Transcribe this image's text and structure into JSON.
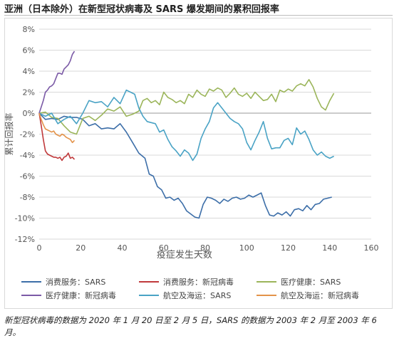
{
  "page": {
    "title": "亚洲（日本除外）在新型冠状病毒及 SARS 爆发期间的累积回报率",
    "note": "新型冠状病毒的数据为 2020 年 1 月 20 日至 2 月 5 日，SARS 的数据为 2003 年 2 月至 2003 年 6 月。"
  },
  "chart_data": {
    "type": "line",
    "xlabel": "疫症发生天数",
    "ylabel": "累计回报率",
    "xlim": [
      0,
      160
    ],
    "ylim": [
      -12,
      8
    ],
    "x_ticks": [
      0,
      20,
      40,
      60,
      80,
      100,
      120,
      140,
      160
    ],
    "y_ticks": [
      -12,
      -10,
      -8,
      -6,
      -4,
      -2,
      0,
      2,
      4,
      6,
      8
    ],
    "y_tick_labels": [
      "-12%",
      "-10%",
      "-8%",
      "-6%",
      "-4%",
      "-2%",
      "0%",
      "2%",
      "4%",
      "6%",
      "8%"
    ],
    "grid": "horizontal",
    "legend": "bottom",
    "series": [
      {
        "name": "消费服务：SARS",
        "color": "#3c6ea8",
        "points": [
          [
            0,
            0
          ],
          [
            3,
            -0.6
          ],
          [
            6,
            -0.5
          ],
          [
            9,
            -0.6
          ],
          [
            12,
            -0.3
          ],
          [
            15,
            -0.4
          ],
          [
            18,
            -0.4
          ],
          [
            21,
            -0.6
          ],
          [
            24,
            -1.2
          ],
          [
            27,
            -1.0
          ],
          [
            30,
            -1.5
          ],
          [
            33,
            -1.4
          ],
          [
            36,
            -1.5
          ],
          [
            39,
            -1.0
          ],
          [
            42,
            -1.8
          ],
          [
            45,
            -2.8
          ],
          [
            48,
            -3.8
          ],
          [
            51,
            -4.3
          ],
          [
            53,
            -5.8
          ],
          [
            55,
            -6.0
          ],
          [
            57,
            -7.0
          ],
          [
            59,
            -7.3
          ],
          [
            61,
            -8.1
          ],
          [
            63,
            -8.0
          ],
          [
            65,
            -8.3
          ],
          [
            67,
            -8.1
          ],
          [
            69,
            -8.6
          ],
          [
            71,
            -9.3
          ],
          [
            73,
            -9.6
          ],
          [
            75,
            -9.9
          ],
          [
            77,
            -10.0
          ],
          [
            79,
            -8.7
          ],
          [
            81,
            -8.0
          ],
          [
            83,
            -8.1
          ],
          [
            85,
            -8.3
          ],
          [
            87,
            -8.6
          ],
          [
            89,
            -8.2
          ],
          [
            91,
            -8.4
          ],
          [
            93,
            -8.1
          ],
          [
            95,
            -8.0
          ],
          [
            97,
            -8.2
          ],
          [
            99,
            -8.1
          ],
          [
            101,
            -7.8
          ],
          [
            103,
            -8.0
          ],
          [
            105,
            -7.8
          ],
          [
            107,
            -7.6
          ],
          [
            109,
            -8.8
          ],
          [
            111,
            -9.7
          ],
          [
            113,
            -9.8
          ],
          [
            115,
            -9.5
          ],
          [
            117,
            -9.7
          ],
          [
            119,
            -9.4
          ],
          [
            121,
            -9.8
          ],
          [
            123,
            -9.2
          ],
          [
            125,
            -9.1
          ],
          [
            127,
            -9.3
          ],
          [
            129,
            -8.8
          ],
          [
            131,
            -9.2
          ],
          [
            133,
            -8.7
          ],
          [
            135,
            -8.6
          ],
          [
            137,
            -8.2
          ],
          [
            139,
            -8.1
          ],
          [
            141,
            -8.0
          ]
        ]
      },
      {
        "name": "消费服务：新冠病毒",
        "color": "#c0393b",
        "points": [
          [
            0,
            0
          ],
          [
            1,
            -1.2
          ],
          [
            2,
            -2.5
          ],
          [
            3,
            -3.6
          ],
          [
            4,
            -3.9
          ],
          [
            5,
            -4.0
          ],
          [
            6,
            -4.1
          ],
          [
            7,
            -4.2
          ],
          [
            8,
            -4.2
          ],
          [
            9,
            -4.3
          ],
          [
            10,
            -4.2
          ],
          [
            11,
            -4.5
          ],
          [
            12,
            -4.2
          ],
          [
            13,
            -4.1
          ],
          [
            14,
            -3.8
          ],
          [
            15,
            -4.3
          ],
          [
            16,
            -4.2
          ],
          [
            17,
            -4.4
          ]
        ]
      },
      {
        "name": "医疗健康：SARS",
        "color": "#9bb55a",
        "points": [
          [
            0,
            0
          ],
          [
            3,
            0.1
          ],
          [
            6,
            -0.4
          ],
          [
            9,
            -0.5
          ],
          [
            12,
            -1.2
          ],
          [
            15,
            -1.8
          ],
          [
            18,
            -2.0
          ],
          [
            21,
            -0.5
          ],
          [
            24,
            -0.3
          ],
          [
            27,
            -0.7
          ],
          [
            30,
            -0.2
          ],
          [
            33,
            0.4
          ],
          [
            36,
            0.2
          ],
          [
            39,
            0.6
          ],
          [
            42,
            -0.3
          ],
          [
            45,
            -0.1
          ],
          [
            48,
            0.2
          ],
          [
            50,
            1.2
          ],
          [
            52,
            1.4
          ],
          [
            54,
            1.0
          ],
          [
            56,
            1.2
          ],
          [
            58,
            0.8
          ],
          [
            60,
            2.0
          ],
          [
            62,
            1.5
          ],
          [
            64,
            1.3
          ],
          [
            66,
            1.0
          ],
          [
            68,
            1.2
          ],
          [
            70,
            0.9
          ],
          [
            72,
            1.8
          ],
          [
            74,
            1.5
          ],
          [
            76,
            2.2
          ],
          [
            78,
            1.8
          ],
          [
            80,
            1.6
          ],
          [
            82,
            2.3
          ],
          [
            84,
            2.1
          ],
          [
            86,
            2.4
          ],
          [
            88,
            2.2
          ],
          [
            90,
            1.5
          ],
          [
            92,
            1.9
          ],
          [
            94,
            2.4
          ],
          [
            96,
            1.8
          ],
          [
            98,
            1.6
          ],
          [
            100,
            1.9
          ],
          [
            102,
            1.4
          ],
          [
            104,
            2.0
          ],
          [
            106,
            1.6
          ],
          [
            108,
            1.2
          ],
          [
            110,
            1.3
          ],
          [
            112,
            1.8
          ],
          [
            114,
            1.1
          ],
          [
            116,
            2.2
          ],
          [
            118,
            2.0
          ],
          [
            120,
            2.3
          ],
          [
            122,
            2.1
          ],
          [
            124,
            2.6
          ],
          [
            126,
            2.8
          ],
          [
            128,
            2.6
          ],
          [
            130,
            3.2
          ],
          [
            132,
            2.5
          ],
          [
            134,
            1.4
          ],
          [
            136,
            0.6
          ],
          [
            138,
            0.3
          ],
          [
            140,
            1.2
          ],
          [
            142,
            1.9
          ]
        ]
      },
      {
        "name": "医疗健康：新冠病毒",
        "color": "#7b5aa6",
        "points": [
          [
            0,
            0
          ],
          [
            1,
            0.6
          ],
          [
            2,
            1.2
          ],
          [
            3,
            2.0
          ],
          [
            4,
            2.2
          ],
          [
            5,
            2.5
          ],
          [
            6,
            2.6
          ],
          [
            7,
            2.8
          ],
          [
            8,
            3.3
          ],
          [
            9,
            3.8
          ],
          [
            10,
            3.8
          ],
          [
            11,
            3.7
          ],
          [
            12,
            4.2
          ],
          [
            13,
            4.4
          ],
          [
            14,
            4.6
          ],
          [
            15,
            5.0
          ],
          [
            16,
            5.6
          ],
          [
            17,
            5.9
          ]
        ]
      },
      {
        "name": "航空及海运：SARS",
        "color": "#4aa3c5",
        "points": [
          [
            0,
            0
          ],
          [
            3,
            -0.3
          ],
          [
            6,
            0.0
          ],
          [
            9,
            -1.0
          ],
          [
            12,
            -0.6
          ],
          [
            15,
            -0.3
          ],
          [
            18,
            -1.0
          ],
          [
            21,
            0.0
          ],
          [
            24,
            1.2
          ],
          [
            27,
            1.0
          ],
          [
            30,
            1.1
          ],
          [
            33,
            0.6
          ],
          [
            36,
            1.5
          ],
          [
            39,
            0.9
          ],
          [
            42,
            2.2
          ],
          [
            44,
            2.0
          ],
          [
            46,
            1.8
          ],
          [
            48,
            0.5
          ],
          [
            50,
            -0.3
          ],
          [
            52,
            -0.8
          ],
          [
            54,
            -0.9
          ],
          [
            56,
            -1.0
          ],
          [
            58,
            -1.8
          ],
          [
            60,
            -1.6
          ],
          [
            62,
            -2.5
          ],
          [
            64,
            -3.2
          ],
          [
            66,
            -3.6
          ],
          [
            68,
            -4.1
          ],
          [
            70,
            -3.5
          ],
          [
            72,
            -3.8
          ],
          [
            74,
            -4.5
          ],
          [
            76,
            -3.9
          ],
          [
            78,
            -2.4
          ],
          [
            80,
            -1.5
          ],
          [
            82,
            -0.8
          ],
          [
            84,
            0.5
          ],
          [
            86,
            1.0
          ],
          [
            88,
            0.5
          ],
          [
            90,
            0.0
          ],
          [
            92,
            -0.5
          ],
          [
            94,
            -0.8
          ],
          [
            96,
            -1.0
          ],
          [
            98,
            -1.5
          ],
          [
            100,
            -2.8
          ],
          [
            102,
            -3.5
          ],
          [
            104,
            -2.6
          ],
          [
            106,
            -1.8
          ],
          [
            108,
            -0.8
          ],
          [
            110,
            -2.4
          ],
          [
            112,
            -3.4
          ],
          [
            114,
            -3.3
          ],
          [
            116,
            -3.3
          ],
          [
            118,
            -2.6
          ],
          [
            120,
            -2.4
          ],
          [
            122,
            -3.0
          ],
          [
            124,
            -1.4
          ],
          [
            126,
            -2.0
          ],
          [
            128,
            -1.7
          ],
          [
            130,
            -2.5
          ],
          [
            132,
            -3.5
          ],
          [
            134,
            -4.0
          ],
          [
            136,
            -3.7
          ],
          [
            138,
            -4.1
          ],
          [
            140,
            -4.3
          ],
          [
            142,
            -4.1
          ]
        ]
      },
      {
        "name": "航空及海运：新冠病毒",
        "color": "#e3934a",
        "points": [
          [
            0,
            0
          ],
          [
            1,
            -0.6
          ],
          [
            2,
            -1.1
          ],
          [
            3,
            -1.5
          ],
          [
            4,
            -1.6
          ],
          [
            5,
            -1.7
          ],
          [
            6,
            -1.8
          ],
          [
            7,
            -1.7
          ],
          [
            8,
            -2.0
          ],
          [
            9,
            -2.1
          ],
          [
            10,
            -2.2
          ],
          [
            11,
            -2.0
          ],
          [
            12,
            -2.1
          ],
          [
            13,
            -2.3
          ],
          [
            14,
            -2.4
          ],
          [
            15,
            -2.5
          ],
          [
            16,
            -2.8
          ],
          [
            17,
            -2.6
          ]
        ]
      }
    ]
  }
}
